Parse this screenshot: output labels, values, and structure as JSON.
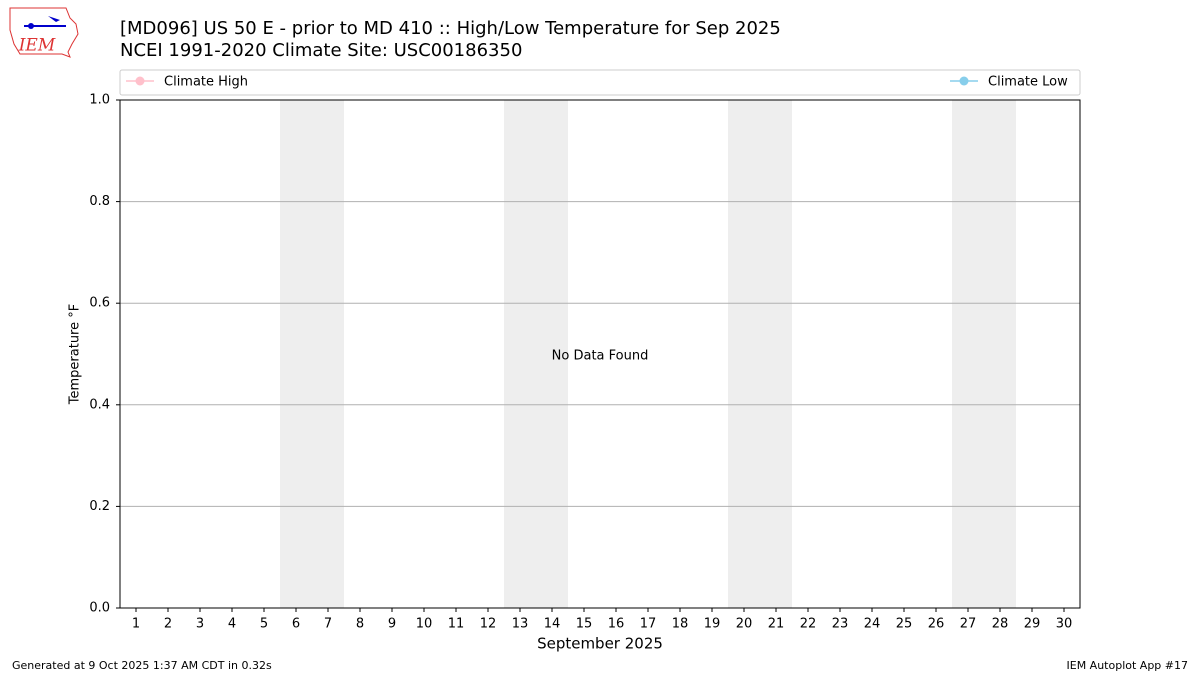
{
  "chart_data": {
    "type": "line",
    "title": "[MD096] US 50 E - prior to MD 410  :: High/Low Temperature for Sep 2025",
    "subtitle": "NCEI 1991-2020 Climate Site: USC00186350",
    "y_label": "Temperature °F",
    "x_label": "September 2025",
    "annotation": "No Data Found",
    "categories": [
      "1",
      "2",
      "3",
      "4",
      "5",
      "6",
      "7",
      "8",
      "9",
      "10",
      "11",
      "12",
      "13",
      "14",
      "15",
      "16",
      "17",
      "18",
      "19",
      "20",
      "21",
      "22",
      "23",
      "24",
      "25",
      "26",
      "27",
      "28",
      "29",
      "30"
    ],
    "series": [
      {
        "name": "Climate High",
        "color": "#ffc0cb",
        "values": [
          null,
          null,
          null,
          null,
          null,
          null,
          null,
          null,
          null,
          null,
          null,
          null,
          null,
          null,
          null,
          null,
          null,
          null,
          null,
          null,
          null,
          null,
          null,
          null,
          null,
          null,
          null,
          null,
          null,
          null
        ]
      },
      {
        "name": "Climate Low",
        "color": "#87ceeb",
        "values": [
          null,
          null,
          null,
          null,
          null,
          null,
          null,
          null,
          null,
          null,
          null,
          null,
          null,
          null,
          null,
          null,
          null,
          null,
          null,
          null,
          null,
          null,
          null,
          null,
          null,
          null,
          null,
          null,
          null,
          null
        ]
      }
    ],
    "xlim": [
      0.5,
      30.5
    ],
    "shaded_spans": [
      [
        5.5,
        7.5
      ],
      [
        12.5,
        14.5
      ],
      [
        19.5,
        21.5
      ],
      [
        26.5,
        28.5
      ]
    ],
    "shade_color": "#eeeeee",
    "ylim": [
      0,
      1
    ],
    "yticks": [
      {
        "value": 0,
        "label": "0.0"
      },
      0.2,
      0.4,
      0.6,
      0.8,
      {
        "value": 1,
        "label": "1.0"
      }
    ],
    "grid": true
  },
  "logo_text": "IEM",
  "footer": {
    "left": "Generated at 9 Oct 2025 1:37 AM CDT in 0.32s",
    "right": "IEM Autoplot App #17"
  }
}
